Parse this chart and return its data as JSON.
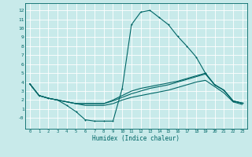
{
  "xlabel": "Humidex (Indice chaleur)",
  "bg_color": "#c8eaea",
  "line_color": "#006666",
  "grid_color": "#ffffff",
  "xlim": [
    -0.5,
    23.5
  ],
  "ylim": [
    -1.2,
    12.8
  ],
  "xticks": [
    0,
    1,
    2,
    3,
    4,
    5,
    6,
    7,
    8,
    9,
    10,
    11,
    12,
    13,
    14,
    15,
    16,
    17,
    18,
    19,
    20,
    21,
    22,
    23
  ],
  "yticks": [
    0,
    1,
    2,
    3,
    4,
    5,
    6,
    7,
    8,
    9,
    10,
    11,
    12
  ],
  "ytick_labels": [
    "-0",
    "1",
    "2",
    "3",
    "4",
    "5",
    "6",
    "7",
    "8",
    "9",
    "10",
    "11",
    "12"
  ],
  "line1_x": [
    0,
    1,
    2,
    3,
    4,
    5,
    6,
    7,
    8,
    9,
    10,
    11,
    12,
    13,
    14,
    15,
    16,
    17,
    18,
    19,
    20,
    21,
    22,
    23
  ],
  "line1_y": [
    3.8,
    2.5,
    2.2,
    2.0,
    1.4,
    0.7,
    -0.2,
    -0.35,
    -0.35,
    -0.35,
    3.3,
    10.4,
    11.8,
    12.0,
    11.2,
    10.4,
    9.1,
    8.0,
    6.8,
    5.0,
    3.7,
    3.1,
    1.9,
    1.65
  ],
  "line2_x": [
    0,
    1,
    2,
    3,
    4,
    5,
    6,
    7,
    8,
    9,
    10,
    11,
    12,
    13,
    14,
    15,
    16,
    17,
    18,
    19,
    20,
    21,
    22,
    23
  ],
  "line2_y": [
    3.8,
    2.5,
    2.2,
    2.0,
    1.8,
    1.6,
    1.6,
    1.6,
    1.6,
    1.9,
    2.3,
    2.7,
    3.0,
    3.3,
    3.5,
    3.7,
    4.0,
    4.3,
    4.6,
    4.9,
    3.7,
    3.1,
    1.9,
    1.65
  ],
  "line3_x": [
    0,
    1,
    2,
    3,
    4,
    5,
    6,
    7,
    8,
    9,
    10,
    11,
    12,
    13,
    14,
    15,
    16,
    17,
    18,
    19,
    20,
    21,
    22,
    23
  ],
  "line3_y": [
    3.8,
    2.5,
    2.2,
    2.0,
    1.8,
    1.6,
    1.6,
    1.6,
    1.6,
    2.0,
    2.5,
    3.0,
    3.3,
    3.5,
    3.7,
    3.9,
    4.1,
    4.4,
    4.7,
    5.0,
    3.7,
    3.1,
    1.9,
    1.65
  ],
  "line4_x": [
    0,
    1,
    2,
    3,
    4,
    5,
    6,
    7,
    8,
    9,
    10,
    11,
    12,
    13,
    14,
    15,
    16,
    17,
    18,
    19,
    20,
    21,
    22,
    23
  ],
  "line4_y": [
    3.8,
    2.5,
    2.2,
    2.0,
    1.8,
    1.6,
    1.4,
    1.4,
    1.4,
    1.6,
    2.0,
    2.3,
    2.5,
    2.7,
    2.9,
    3.1,
    3.4,
    3.7,
    4.0,
    4.2,
    3.5,
    2.8,
    1.8,
    1.5
  ]
}
